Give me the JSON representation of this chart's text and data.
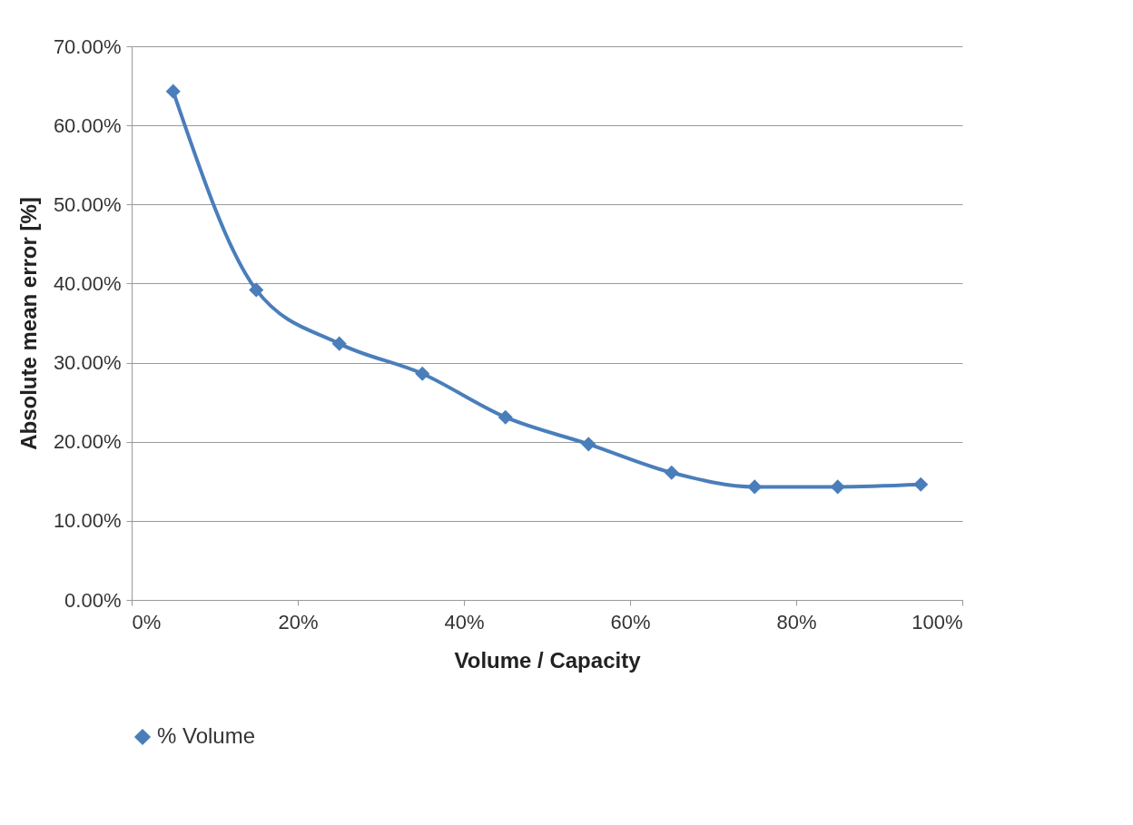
{
  "chart_data": {
    "type": "line",
    "xlabel": "Volume / Capacity",
    "ylabel": "Absolute mean error [%]",
    "x": [
      5,
      15,
      25,
      35,
      45,
      55,
      65,
      75,
      85,
      95
    ],
    "series": [
      {
        "name": "% Volume",
        "color": "#4a7ebb",
        "values": [
          64.3,
          39.2,
          32.4,
          28.6,
          23.1,
          19.7,
          16.1,
          14.3,
          14.3,
          14.6
        ]
      }
    ],
    "xlim": [
      0,
      100
    ],
    "xticks": [
      {
        "value": 0,
        "label": "0%"
      },
      {
        "value": 20,
        "label": "20%"
      },
      {
        "value": 40,
        "label": "40%"
      },
      {
        "value": 60,
        "label": "60%"
      },
      {
        "value": 80,
        "label": "80%"
      },
      {
        "value": 100,
        "label": "100%"
      }
    ],
    "ylim": [
      0,
      70
    ],
    "yticks": [
      {
        "value": 0,
        "label": "0.00%"
      },
      {
        "value": 10,
        "label": "10.00%"
      },
      {
        "value": 20,
        "label": "20.00%"
      },
      {
        "value": 30,
        "label": "30.00%"
      },
      {
        "value": 40,
        "label": "40.00%"
      },
      {
        "value": 50,
        "label": "50.00%"
      },
      {
        "value": 60,
        "label": "60.00%"
      },
      {
        "value": 70,
        "label": "70.00%"
      }
    ],
    "grid": "y",
    "legend": "bottom",
    "marker": "diamond",
    "line_style": "solid"
  }
}
